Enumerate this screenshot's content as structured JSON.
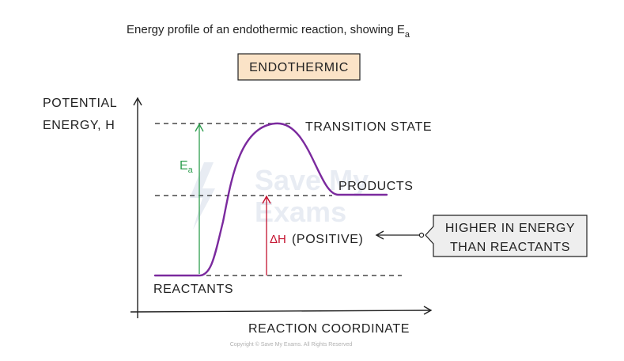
{
  "caption": {
    "text": "Energy profile of an endothermic reaction, showing E",
    "subscript": "a"
  },
  "badge": {
    "text": "ENDOTHERMIC",
    "fill": "#fbe3c7",
    "border": "#222222"
  },
  "axes": {
    "y_label_line1": "POTENTIAL",
    "y_label_line2": "ENERGY, H",
    "x_label": "REACTION COORDINATE"
  },
  "labels": {
    "transition_state": "TRANSITION STATE",
    "products": "PRODUCTS",
    "reactants": "REACTANTS",
    "ea_main": "E",
    "ea_sub": "a",
    "delta_h": "ΔH",
    "positive": "(POSITIVE)",
    "note_line1": "HIGHER IN ENERGY",
    "note_line2": "THAN REACTANTS"
  },
  "watermark": {
    "line1": "Save My",
    "line2": "Exams"
  },
  "copyright": "Copyright © Save My Exams. All Rights Reserved",
  "colors": {
    "curve": "#7b2a9e",
    "ea_arrow": "#2e9e4f",
    "delta_h_arrow": "#c4122f",
    "line": "#222222",
    "note_fill": "#eeeeee"
  },
  "icons": {
    "axis_arrows": "arrow-head-icon",
    "watermark_logo": "lightning-icon"
  }
}
